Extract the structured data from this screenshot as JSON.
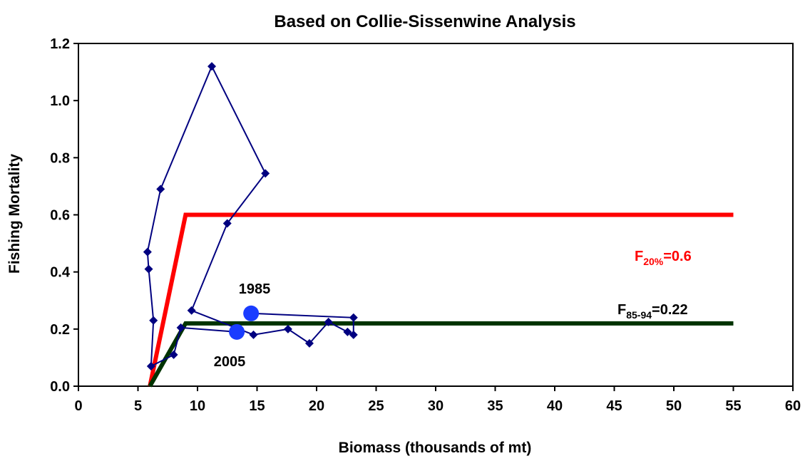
{
  "chart_data": {
    "type": "line",
    "title": "Based on Collie-Sissenwine Analysis",
    "x_label": "Biomass (thousands of mt)",
    "y_label": "Fishing Mortality",
    "xlim": [
      0,
      60
    ],
    "ylim": [
      0,
      1.2
    ],
    "xticks": [
      0,
      5,
      10,
      15,
      20,
      25,
      30,
      35,
      40,
      45,
      50,
      55,
      60
    ],
    "yticks": [
      {
        "value": 0,
        "label": "0.0"
      },
      0.2,
      0.4,
      0.6,
      0.8,
      {
        "value": 1,
        "label": "1.0"
      },
      1.2
    ],
    "series": [
      {
        "color": "#000080",
        "x": [
          14.5,
          23.1,
          23.1,
          22.6,
          21.0,
          19.4,
          17.6,
          14.7,
          9.5,
          12.5,
          15.7,
          11.2,
          6.9,
          5.8,
          5.9,
          6.3,
          6.1,
          8.0,
          8.6,
          13.3
        ],
        "values": [
          0.255,
          0.24,
          0.18,
          0.19,
          0.225,
          0.15,
          0.2,
          0.18,
          0.265,
          0.57,
          0.745,
          1.12,
          0.69,
          0.47,
          0.41,
          0.23,
          0.07,
          0.11,
          0.205,
          0.19
        ]
      },
      {
        "color": "#ff0000",
        "x": [
          6,
          9,
          55
        ],
        "values": [
          0,
          0.6,
          0.6
        ]
      },
      {
        "color": "#003300",
        "x": [
          6,
          9,
          55
        ],
        "values": [
          0,
          0.22,
          0.22
        ]
      }
    ],
    "annotations": [
      {
        "text": "1985"
      },
      {
        "text": "2005"
      },
      {
        "main": "F",
        "sub": "20%",
        "rest": "=0.6",
        "color": "#ff0000"
      },
      {
        "main": "F",
        "sub": "85-94",
        "rest": "=0.22",
        "color": "#000000"
      }
    ]
  }
}
